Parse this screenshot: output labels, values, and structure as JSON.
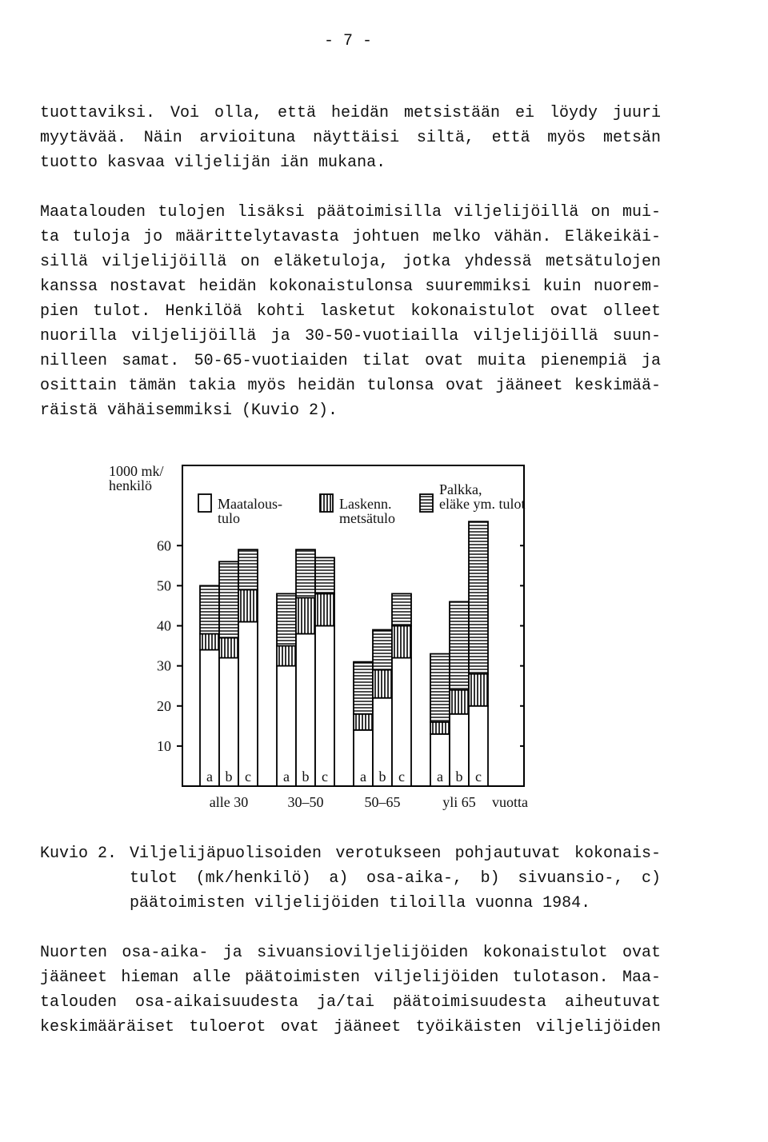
{
  "page_number": "- 7 -",
  "paragraphs": [
    [
      "tuottaviksi. Voi olla, että heidän metsistään ei löydy juuri",
      "myytävää. Näin arvioituna näyttäisi siltä, että myös metsän",
      "tuotto kasvaa viljelijän iän mukana."
    ],
    [
      "Maatalouden tulojen lisäksi päätoimisilla viljelijöillä on mui-",
      "ta tuloja jo määrittelytavasta johtuen melko vähän. Eläkeikäi-",
      "sillä viljelijöillä on eläketuloja, jotka yhdessä metsätulojen",
      "kanssa nostavat heidän kokonaistulonsa suuremmiksi kuin nuorem-",
      "pien tulot. Henkilöä kohti lasketut kokonaistulot ovat olleet",
      "nuorilla viljelijöillä ja 30-50-vuotiailla viljelijöillä suun-",
      "nilleen samat. 50-65-vuotiaiden tilat ovat muita pienempiä ja",
      "osittain tämän takia myös heidän tulonsa ovat jääneet keskimää-",
      "räistä vähäisemmiksi (Kuvio 2)."
    ],
    [
      "Nuorten osa-aika- ja sivuansioviljelijöiden kokonaistulot ovat",
      "jääneet hieman alle päätoimisten viljelijöiden tulotason. Maa-",
      "talouden osa-aikaisuudesta ja/tai päätoimisuudesta aiheutuvat",
      "keskimääräiset tuloerot ovat jääneet työikäisten viljelijöiden"
    ]
  ],
  "caption": {
    "label": "Kuvio 2.",
    "lines": [
      "Viljelijäpuolisoiden verotukseen pohjautuvat kokonais-",
      "tulot (mk/henkilö) a) osa-aika-, b) sivuansio-, c)",
      "päätoimisten viljelijöiden tiloilla vuonna 1984."
    ]
  },
  "chart_data": {
    "type": "stacked-bar",
    "ylabel": "1000 mk/\nhenkilö",
    "groups": [
      "alle 30",
      "30–50",
      "50–65",
      "yli 65"
    ],
    "xlabel": "vuotta",
    "categories": [
      "a",
      "b",
      "c",
      "a",
      "b",
      "c",
      "a",
      "b",
      "c",
      "a",
      "b",
      "c"
    ],
    "series": [
      {
        "name": "Maatalous-\ntulo",
        "color": "#000000",
        "pattern": "none",
        "values": [
          34,
          32,
          41,
          30,
          38,
          40,
          14,
          22,
          32,
          13,
          18,
          20
        ]
      },
      {
        "name": "Laskenn.\nmetsätulo",
        "color": "#000000",
        "pattern": "vertical",
        "values": [
          4,
          5,
          8,
          5,
          9,
          8,
          4,
          7,
          8,
          3,
          6,
          8
        ]
      },
      {
        "name": "Palkka,\neläke ym. tulot",
        "color": "#000000",
        "pattern": "horizontal",
        "values": [
          12,
          19,
          10,
          13,
          12,
          9,
          13,
          10,
          8,
          17,
          22,
          38
        ]
      }
    ],
    "ylim": [
      0,
      80
    ],
    "yticks": [
      10,
      20,
      30,
      40,
      50,
      60
    ]
  }
}
